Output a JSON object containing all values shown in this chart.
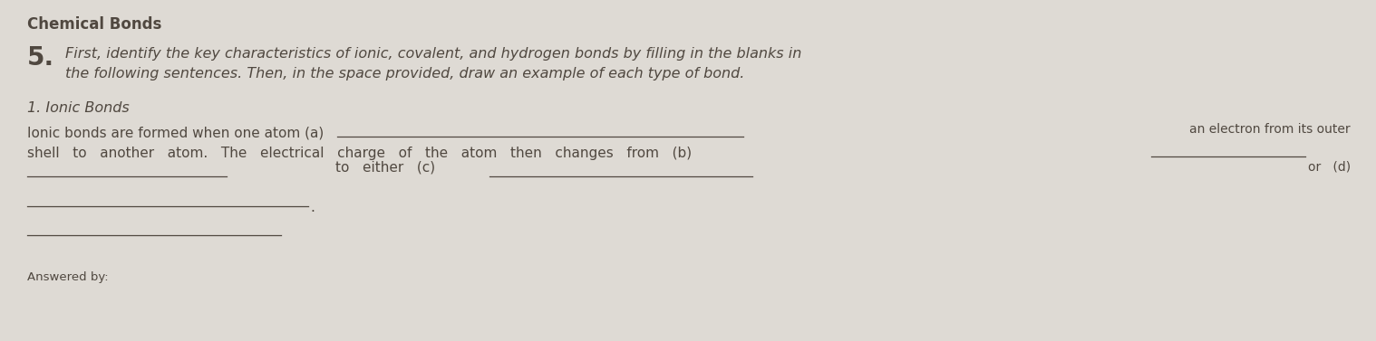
{
  "background_color": "#dedad4",
  "title": "Chemical Bonds",
  "title_fontsize": 12,
  "subtitle_number": "5.",
  "subtitle_number_fontsize": 20,
  "subtitle_text_line1": "First, identify the key characteristics of ionic, covalent, and hydrogen bonds by filling in the blanks in",
  "subtitle_text_line2": "the following sentences. Then, in the space provided, draw an example of each type of bond.",
  "subtitle_fontsize": 11.5,
  "section_title": "1. Ionic Bonds",
  "section_title_fontsize": 11.5,
  "text_color": "#504840",
  "text_fontsize": 11.0,
  "text_fontsize_small": 10.0,
  "answered_by": "Answered by:"
}
